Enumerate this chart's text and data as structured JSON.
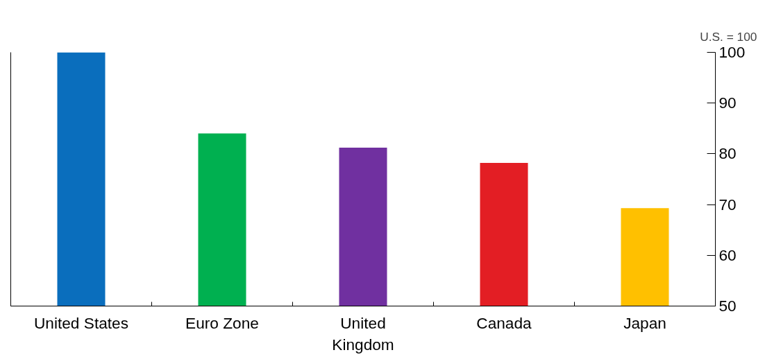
{
  "chart_data": {
    "type": "bar",
    "categories": [
      "United States",
      "Euro Zone",
      "United Kingdom",
      "Canada",
      "Japan"
    ],
    "values": [
      100,
      84,
      81.2,
      78.2,
      69.3
    ],
    "colors": [
      "#0a6ebd",
      "#00b050",
      "#7030a0",
      "#e31e24",
      "#ffc000"
    ],
    "ylim": [
      50,
      100
    ],
    "yticks": [
      50,
      60,
      70,
      80,
      90,
      100
    ],
    "annotations": [
      "U.S. = 100"
    ],
    "grid": false
  }
}
